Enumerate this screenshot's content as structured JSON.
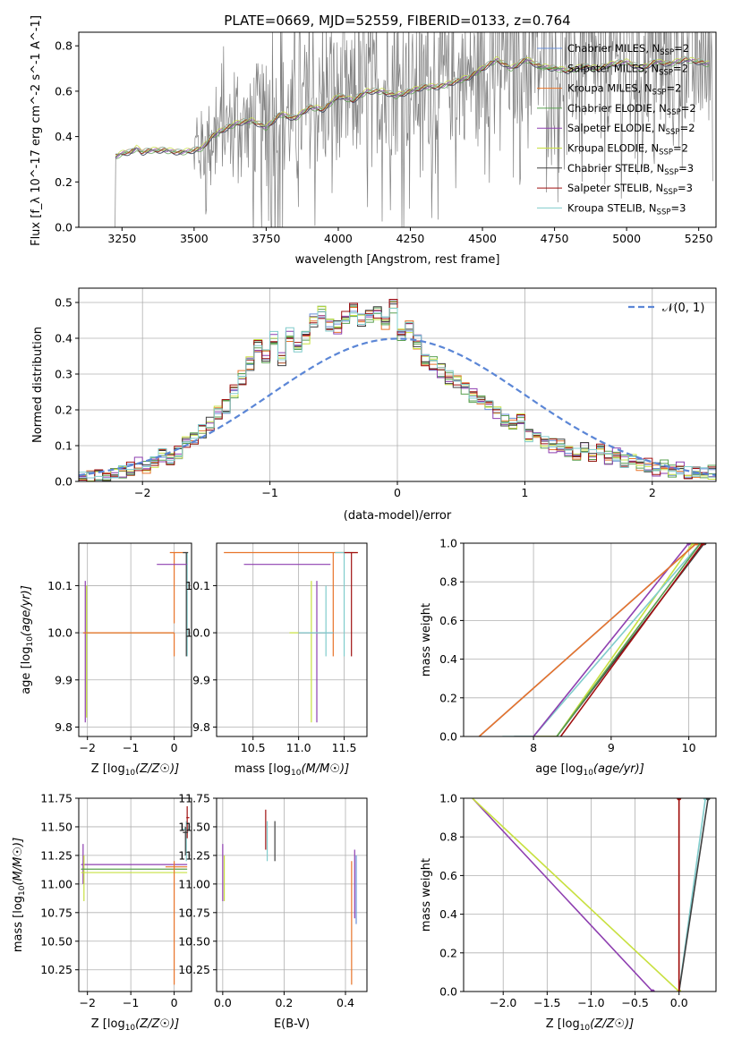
{
  "colors": {
    "chabrier_miles": "#6a8fd8",
    "salpeter_miles": "#5aa050",
    "kroupa_miles": "#e8742a",
    "chabrier_elodie": "#5aa050",
    "salpeter_elodie": "#8e3fb0",
    "kroupa_elodie": "#c8e040",
    "chabrier_stelib": "#404040",
    "salpeter_stelib": "#a01010",
    "kroupa_stelib": "#80cccc",
    "spectrum": "#808080",
    "normal": "#5b86d6"
  },
  "chart_data": [
    {
      "id": "spectrum",
      "type": "line",
      "title": "PLATE=0669, MJD=52559, FIBERID=0133, z=0.764",
      "xlabel": "wavelength [Angstrom, rest frame]",
      "ylabel": "Flux [f_λ 10^-17 erg cm^-2 s^-1 A^-1]",
      "xlim": [
        3100,
        5310
      ],
      "ylim": [
        0,
        0.86
      ],
      "xticks": [
        "3250",
        "3500",
        "3750",
        "4000",
        "4250",
        "4500",
        "4750",
        "5000",
        "5250"
      ],
      "yticks": [
        "0.0",
        "0.2",
        "0.4",
        "0.6",
        "0.8"
      ],
      "legend_position": "top-right",
      "legend": [
        {
          "text": "Chabrier MILES, N",
          "sub": "SSP",
          "tail": "=2",
          "color": "chabrier_miles"
        },
        {
          "text": "Salpeter MILES, N",
          "sub": "SSP",
          "tail": "=2",
          "color": "salpeter_miles"
        },
        {
          "text": "Kroupa MILES, N",
          "sub": "SSP",
          "tail": "=2",
          "color": "kroupa_miles"
        },
        {
          "text": "Chabrier ELODIE, N",
          "sub": "SSP",
          "tail": "=2",
          "color": "chabrier_elodie"
        },
        {
          "text": "Salpeter ELODIE, N",
          "sub": "SSP",
          "tail": "=2",
          "color": "salpeter_elodie"
        },
        {
          "text": "Kroupa ELODIE, N",
          "sub": "SSP",
          "tail": "=2",
          "color": "kroupa_elodie"
        },
        {
          "text": "Chabrier STELIB, N",
          "sub": "SSP",
          "tail": "=3",
          "color": "chabrier_stelib"
        },
        {
          "text": "Salpeter STELIB, N",
          "sub": "SSP",
          "tail": "=3",
          "color": "salpeter_stelib"
        },
        {
          "text": "Kroupa STELIB, N",
          "sub": "SSP",
          "tail": "=3",
          "color": "kroupa_stelib"
        }
      ],
      "model_continuum": {
        "x": [
          3225,
          3240,
          3260,
          3280,
          3300,
          3320,
          3350,
          3400,
          3450,
          3500,
          3530,
          3560,
          3600,
          3650,
          3700,
          3750,
          3800,
          3850,
          3900,
          3950,
          4000,
          4050,
          4100,
          4150,
          4200,
          4250,
          4300,
          4350,
          4400,
          4450,
          4500,
          4550,
          4600,
          4650,
          4700,
          4750,
          4800,
          4850,
          4900,
          4950,
          5000,
          5050,
          5100,
          5150,
          5200,
          5250,
          5280
        ],
        "y": [
          0.31,
          0.32,
          0.33,
          0.33,
          0.35,
          0.33,
          0.34,
          0.34,
          0.33,
          0.34,
          0.35,
          0.4,
          0.43,
          0.46,
          0.47,
          0.44,
          0.5,
          0.48,
          0.53,
          0.52,
          0.58,
          0.56,
          0.6,
          0.6,
          0.58,
          0.6,
          0.62,
          0.62,
          0.64,
          0.66,
          0.7,
          0.74,
          0.7,
          0.74,
          0.71,
          0.7,
          0.69,
          0.71,
          0.7,
          0.72,
          0.73,
          0.7,
          0.73,
          0.72,
          0.74,
          0.73,
          0.72
        ]
      }
    },
    {
      "id": "residuals",
      "type": "step",
      "xlabel": "(data-model)/error",
      "ylabel": "Normed distribution",
      "xlim": [
        -2.5,
        2.5
      ],
      "ylim": [
        0,
        0.54
      ],
      "xticks": [
        "−2",
        "−1",
        "0",
        "1",
        "2"
      ],
      "yticks": [
        "0.0",
        "0.1",
        "0.2",
        "0.3",
        "0.4",
        "0.5"
      ],
      "legend_position": "top-right",
      "legend": [
        {
          "text": "𝒩(0, 1)",
          "color": "normal",
          "dashed": true
        }
      ],
      "bin_width": 0.1,
      "bins_start": -2.5,
      "reference": [
        0.013,
        0.012,
        0.014,
        0.018,
        0.02,
        0.025,
        0.035,
        0.05,
        0.04,
        0.055,
        0.075,
        0.065,
        0.08,
        0.11,
        0.12,
        0.14,
        0.16,
        0.19,
        0.21,
        0.25,
        0.29,
        0.33,
        0.38,
        0.35,
        0.4,
        0.34,
        0.41,
        0.37,
        0.4,
        0.45,
        0.47,
        0.44,
        0.43,
        0.46,
        0.48,
        0.45,
        0.46,
        0.47,
        0.44,
        0.49,
        0.41,
        0.43,
        0.39,
        0.34,
        0.33,
        0.31,
        0.29,
        0.28,
        0.26,
        0.24,
        0.22,
        0.21,
        0.19,
        0.17,
        0.16,
        0.17,
        0.13,
        0.12,
        0.11,
        0.1,
        0.1,
        0.08,
        0.075,
        0.09,
        0.07,
        0.085,
        0.065,
        0.075,
        0.055,
        0.06,
        0.05,
        0.045,
        0.035,
        0.04,
        0.03,
        0.035,
        0.025,
        0.028,
        0.022,
        0.025
      ]
    },
    {
      "id": "age_vs_Z",
      "type": "scatter",
      "xlabel": "Z [log10(Z/Z☉)]",
      "ylabel": "age  [log10(age/yr)]",
      "xlim": [
        -2.2,
        0.4
      ],
      "ylim": [
        9.78,
        10.19
      ],
      "xticks": [
        {
          "v": -2,
          "t": "−2"
        },
        {
          "v": -1,
          "t": "−1"
        },
        {
          "v": 0,
          "t": "0"
        }
      ],
      "yticks": [
        {
          "v": 9.8,
          "t": "9.8"
        },
        {
          "v": 9.9,
          "t": "9.9"
        },
        {
          "v": 10.0,
          "t": "10.0"
        },
        {
          "v": 10.1,
          "t": "10.1"
        }
      ]
    },
    {
      "id": "age_vs_mass",
      "type": "scatter",
      "xlabel": "mass [log10(M/M☉)]",
      "ylabel": "",
      "xlim": [
        10.1,
        11.75
      ],
      "ylim": [
        9.78,
        10.19
      ],
      "xticks": [
        {
          "v": 10.5,
          "t": "10.5"
        },
        {
          "v": 11.0,
          "t": "11.0"
        },
        {
          "v": 11.5,
          "t": "11.5"
        }
      ],
      "yticks": [
        {
          "v": 9.8,
          "t": "9.8"
        },
        {
          "v": 9.9,
          "t": "9.9"
        },
        {
          "v": 10.0,
          "t": "10.0"
        },
        {
          "v": 10.1,
          "t": "10.1"
        }
      ]
    },
    {
      "id": "weight_vs_age",
      "type": "line",
      "xlabel": "age  [log10(age/yr)]",
      "ylabel": "mass weight",
      "xlim": [
        7.1,
        10.35
      ],
      "ylim": [
        0,
        1.0
      ],
      "xticks": [
        {
          "v": 8,
          "t": "8"
        },
        {
          "v": 9,
          "t": "9"
        },
        {
          "v": 10,
          "t": "10"
        }
      ],
      "yticks": [
        {
          "v": 0,
          "t": "0.0"
        },
        {
          "v": 0.2,
          "t": "0.2"
        },
        {
          "v": 0.4,
          "t": "0.4"
        },
        {
          "v": 0.6,
          "t": "0.6"
        },
        {
          "v": 0.8,
          "t": "0.8"
        },
        {
          "v": 1.0,
          "t": "1.0"
        }
      ],
      "series": [
        {
          "color": "chabrier_stelib",
          "x": [
            7.75,
            8.3,
            10.2
          ],
          "y": [
            0,
            0,
            1
          ]
        },
        {
          "color": "kroupa_elodie",
          "x": [
            8.0,
            8.3,
            10.05
          ],
          "y": [
            0,
            0,
            1
          ]
        },
        {
          "color": "kroupa_stelib",
          "x": [
            7.6,
            8.0,
            10.15
          ],
          "y": [
            0,
            0,
            1
          ]
        },
        {
          "color": "salpeter_elodie",
          "x": [
            8.0,
            10.0
          ],
          "y": [
            0,
            1
          ]
        },
        {
          "color": "chabrier_miles",
          "x": [
            7.3,
            10.1
          ],
          "y": [
            0,
            1
          ]
        },
        {
          "color": "kroupa_miles",
          "x": [
            7.3,
            10.1
          ],
          "y": [
            0,
            1
          ]
        },
        {
          "color": "salpeter_miles",
          "x": [
            8.3,
            10.15
          ],
          "y": [
            0,
            1
          ]
        },
        {
          "color": "salpeter_stelib",
          "x": [
            8.35,
            10.18
          ],
          "y": [
            0,
            1
          ]
        }
      ]
    },
    {
      "id": "mass_vs_Z",
      "type": "scatter",
      "xlabel": "Z [log10(Z/Z☉)]",
      "ylabel": "mass [log10(M/M☉)]",
      "xlim": [
        -2.2,
        0.4
      ],
      "ylim": [
        10.06,
        11.75
      ],
      "xticks": [
        {
          "v": -2,
          "t": "−2"
        },
        {
          "v": -1,
          "t": "−1"
        },
        {
          "v": 0,
          "t": "0"
        }
      ],
      "yticks": [
        {
          "v": 10.25,
          "t": "10.25"
        },
        {
          "v": 10.5,
          "t": "10.50"
        },
        {
          "v": 10.75,
          "t": "10.75"
        },
        {
          "v": 11.0,
          "t": "11.00"
        },
        {
          "v": 11.25,
          "t": "11.25"
        },
        {
          "v": 11.5,
          "t": "11.50"
        },
        {
          "v": 11.75,
          "t": "11.75"
        }
      ]
    },
    {
      "id": "mass_vs_EBV",
      "type": "scatter",
      "xlabel": "E(B-V)",
      "ylabel": "",
      "xlim": [
        -0.02,
        0.47
      ],
      "ylim": [
        10.06,
        11.75
      ],
      "xticks": [
        {
          "v": 0.0,
          "t": "0.0"
        },
        {
          "v": 0.2,
          "t": "0.2"
        },
        {
          "v": 0.4,
          "t": "0.4"
        }
      ],
      "yticks": [
        {
          "v": 10.25,
          "t": "10.25"
        },
        {
          "v": 10.5,
          "t": "10.50"
        },
        {
          "v": 10.75,
          "t": "10.75"
        },
        {
          "v": 11.0,
          "t": "11.00"
        },
        {
          "v": 11.25,
          "t": "11.25"
        },
        {
          "v": 11.5,
          "t": "11.50"
        },
        {
          "v": 11.75,
          "t": "11.75"
        }
      ]
    },
    {
      "id": "weight_vs_Z",
      "type": "line",
      "xlabel": "Z [log10(Z/Z☉)]",
      "ylabel": "mass weight",
      "xlim": [
        -2.45,
        0.42
      ],
      "ylim": [
        0,
        1.0
      ],
      "xticks": [
        {
          "v": -2.0,
          "t": "−2.0"
        },
        {
          "v": -1.5,
          "t": "−1.5"
        },
        {
          "v": -1.0,
          "t": "−1.0"
        },
        {
          "v": -0.5,
          "t": "−0.5"
        },
        {
          "v": 0.0,
          "t": "0.0"
        }
      ],
      "yticks": [
        {
          "v": 0,
          "t": "0.0"
        },
        {
          "v": 0.2,
          "t": "0.2"
        },
        {
          "v": 0.4,
          "t": "0.4"
        },
        {
          "v": 0.6,
          "t": "0.6"
        },
        {
          "v": 0.8,
          "t": "0.8"
        },
        {
          "v": 1.0,
          "t": "1.0"
        }
      ],
      "series": [
        {
          "color": "salpeter_elodie",
          "x": [
            -2.35,
            -0.3
          ],
          "y": [
            1.0,
            0.0
          ]
        },
        {
          "color": "kroupa_elodie",
          "x": [
            -2.35,
            0.0
          ],
          "y": [
            1.0,
            0.0
          ]
        },
        {
          "color": "kroupa_stelib",
          "x": [
            0.0,
            0.3
          ],
          "y": [
            0.0,
            1.0
          ]
        },
        {
          "color": "chabrier_stelib",
          "x": [
            0.0,
            0.33
          ],
          "y": [
            0.0,
            1.0
          ]
        },
        {
          "color": "kroupa_miles",
          "x": [
            0.0,
            0.0
          ],
          "y": [
            0.0,
            1.0
          ]
        },
        {
          "color": "salpeter_stelib",
          "x": [
            0.0,
            0.0
          ],
          "y": [
            0.0,
            1.0
          ]
        }
      ]
    }
  ]
}
